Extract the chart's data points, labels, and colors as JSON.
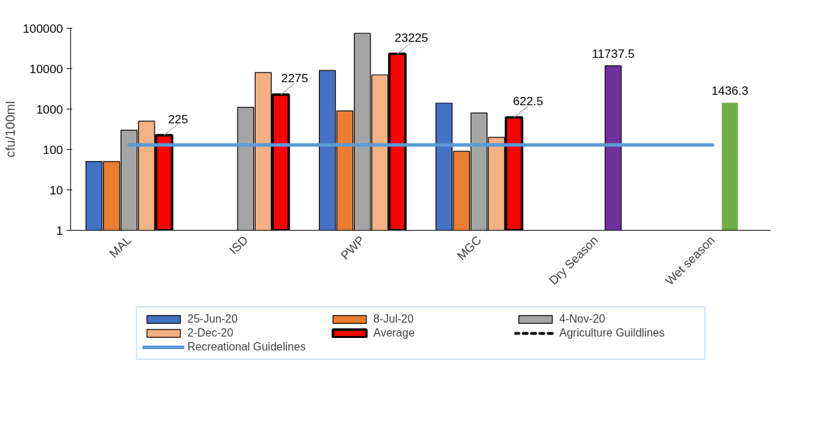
{
  "chart_data": {
    "type": "bar",
    "ylabel": "cfu/100ml",
    "categories": [
      "MAL",
      "ISD",
      "PWP",
      "MGC",
      "Dry Season",
      "Wet season"
    ],
    "log": true,
    "ylim": [
      1,
      100000
    ],
    "yticks": [
      1,
      10,
      100,
      1000,
      10000,
      100000
    ],
    "grid": false,
    "legend": "bottom",
    "series": [
      {
        "name": "25-Jun-20",
        "color": "#4472c4",
        "values": [
          50,
          null,
          9000,
          1400,
          null,
          null
        ]
      },
      {
        "name": "8-Jul-20",
        "color": "#ed7d31",
        "values": [
          50,
          null,
          900,
          90,
          null,
          null
        ]
      },
      {
        "name": "4-Nov-20",
        "color": "#a5a5a5",
        "values": [
          300,
          1100,
          75000,
          800,
          null,
          null
        ]
      },
      {
        "name": "2-Dec-20",
        "color": "#f4b183",
        "values": [
          500,
          8000,
          7000,
          200,
          null,
          null
        ]
      },
      {
        "name": "Average",
        "color": "#ff0000",
        "values": [
          225,
          2275,
          23225,
          622.5,
          null,
          null
        ],
        "value_labels": [
          "225",
          "2275",
          "23225",
          "622.5",
          null,
          null
        ]
      },
      {
        "color": "#7030a0",
        "values": [
          null,
          null,
          null,
          null,
          11737.5,
          null
        ],
        "value_labels": [
          null,
          null,
          null,
          null,
          "11737.5",
          null
        ]
      },
      {
        "color": "#70ad47",
        "values": [
          null,
          null,
          null,
          null,
          null,
          1436.3
        ],
        "value_labels": [
          null,
          null,
          null,
          null,
          null,
          "1436.3"
        ]
      },
      {
        "name": "Agriculture Guildlines",
        "type": "line",
        "color": "#000000",
        "line_style": "dashed",
        "values": [
          null,
          null,
          null,
          null,
          null,
          null
        ]
      },
      {
        "name": "Recreational Guidelines",
        "type": "line",
        "color": "#5b9bd5",
        "line_style": "solid",
        "values": [
          130,
          130,
          130,
          130,
          130,
          130
        ]
      }
    ]
  }
}
